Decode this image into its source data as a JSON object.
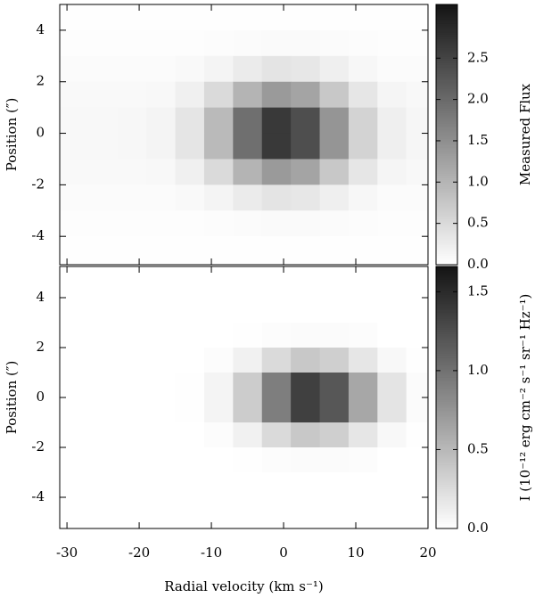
{
  "chart_data": [
    {
      "type": "heatmap",
      "ylabel": "Position (″)",
      "x": [
        -29,
        -25,
        -21,
        -17,
        -13,
        -9,
        -5,
        -1,
        3,
        7,
        11,
        15,
        19
      ],
      "y": [
        4.5,
        3.5,
        2.5,
        1.5,
        0.5,
        -0.5,
        -1.5,
        -2.5,
        -3.5,
        -4.5
      ],
      "values": [
        [
          0.02,
          0.02,
          0.02,
          0.02,
          0.02,
          0.02,
          0.02,
          0.02,
          0.02,
          0.02,
          0.02,
          0.02,
          0.02
        ],
        [
          0.03,
          0.03,
          0.03,
          0.03,
          0.03,
          0.04,
          0.06,
          0.07,
          0.07,
          0.05,
          0.04,
          0.03,
          0.03
        ],
        [
          0.05,
          0.05,
          0.05,
          0.06,
          0.08,
          0.15,
          0.27,
          0.36,
          0.32,
          0.21,
          0.11,
          0.06,
          0.05
        ],
        [
          0.08,
          0.08,
          0.08,
          0.1,
          0.2,
          0.49,
          1.0,
          1.36,
          1.22,
          0.74,
          0.33,
          0.14,
          0.09
        ],
        [
          0.1,
          0.1,
          0.11,
          0.15,
          0.35,
          0.93,
          1.93,
          2.65,
          2.37,
          1.42,
          0.59,
          0.21,
          0.12
        ],
        [
          0.1,
          0.1,
          0.11,
          0.15,
          0.35,
          0.93,
          1.93,
          2.65,
          2.37,
          1.42,
          0.59,
          0.21,
          0.12
        ],
        [
          0.08,
          0.08,
          0.08,
          0.1,
          0.2,
          0.49,
          1.0,
          1.36,
          1.22,
          0.74,
          0.33,
          0.14,
          0.09
        ],
        [
          0.05,
          0.05,
          0.05,
          0.06,
          0.08,
          0.15,
          0.27,
          0.36,
          0.32,
          0.21,
          0.11,
          0.06,
          0.05
        ],
        [
          0.03,
          0.03,
          0.03,
          0.03,
          0.03,
          0.04,
          0.06,
          0.07,
          0.07,
          0.05,
          0.04,
          0.03,
          0.03
        ],
        [
          0.02,
          0.02,
          0.02,
          0.02,
          0.02,
          0.02,
          0.02,
          0.02,
          0.02,
          0.02,
          0.02,
          0.02,
          0.02
        ]
      ],
      "xlim": [
        -31,
        20
      ],
      "ylim": [
        -5.1,
        5
      ],
      "xticks": [
        -30,
        -20,
        -10,
        0,
        10,
        20
      ],
      "yticks": [
        4,
        2,
        0,
        -2,
        -4
      ],
      "colorbar": {
        "label": "Measured Flux",
        "lim": [
          0,
          3.15
        ],
        "ticks": [
          {
            "value": 0,
            "label": "0.0"
          },
          {
            "value": 0.5,
            "label": "0.5"
          },
          {
            "value": 1,
            "label": "1.0"
          },
          {
            "value": 1.5,
            "label": "1.5"
          },
          {
            "value": 2,
            "label": "2.0"
          },
          {
            "value": 2.5,
            "label": "2.5"
          }
        ]
      }
    },
    {
      "type": "heatmap",
      "ylabel": "Position (″)",
      "xlabel": "Radial velocity (km s⁻¹)",
      "x": [
        -29,
        -25,
        -21,
        -17,
        -13,
        -9,
        -5,
        -1,
        3,
        7,
        11,
        15,
        19
      ],
      "y": [
        4.5,
        3.5,
        2.5,
        1.5,
        0.5,
        -0.5,
        -1.5,
        -2.5,
        -3.5,
        -4.5
      ],
      "values": [
        [
          0,
          0,
          0,
          0,
          0,
          0,
          0,
          0,
          0,
          0,
          0,
          0,
          0
        ],
        [
          0,
          0,
          0,
          0,
          0,
          0,
          0,
          0,
          0,
          0,
          0,
          0,
          0
        ],
        [
          0,
          0,
          0,
          0,
          0,
          0,
          0.01,
          0.02,
          0.03,
          0.03,
          0.02,
          0,
          0
        ],
        [
          0,
          0,
          0,
          0,
          0,
          0.02,
          0.1,
          0.26,
          0.39,
          0.34,
          0.18,
          0.05,
          0.01
        ],
        [
          0,
          0,
          0,
          0,
          0.01,
          0.08,
          0.36,
          0.91,
          1.35,
          1.19,
          0.62,
          0.19,
          0.03
        ],
        [
          0,
          0,
          0,
          0,
          0.01,
          0.08,
          0.36,
          0.91,
          1.35,
          1.19,
          0.62,
          0.19,
          0.03
        ],
        [
          0,
          0,
          0,
          0,
          0,
          0.02,
          0.1,
          0.26,
          0.39,
          0.34,
          0.18,
          0.05,
          0.01
        ],
        [
          0,
          0,
          0,
          0,
          0,
          0,
          0.01,
          0.02,
          0.03,
          0.03,
          0.02,
          0,
          0
        ],
        [
          0,
          0,
          0,
          0,
          0,
          0,
          0,
          0,
          0,
          0,
          0,
          0,
          0
        ],
        [
          0,
          0,
          0,
          0,
          0,
          0,
          0,
          0,
          0,
          0,
          0,
          0,
          0
        ]
      ],
      "xlim": [
        -31,
        20
      ],
      "ylim": [
        -5.25,
        5.25
      ],
      "xticks": [
        -30,
        -20,
        -10,
        0,
        10,
        20
      ],
      "yticks": [
        4,
        2,
        0,
        -2,
        -4
      ],
      "colorbar": {
        "label": "I (10⁻¹² erg cm⁻² s⁻¹ sr⁻¹ Hz⁻¹)",
        "lim": [
          0,
          1.66
        ],
        "ticks": [
          {
            "value": 0,
            "label": "0.0"
          },
          {
            "value": 0.5,
            "label": "0.5"
          },
          {
            "value": 1,
            "label": "1.0"
          },
          {
            "value": 1.5,
            "label": "1.5"
          }
        ]
      }
    }
  ]
}
